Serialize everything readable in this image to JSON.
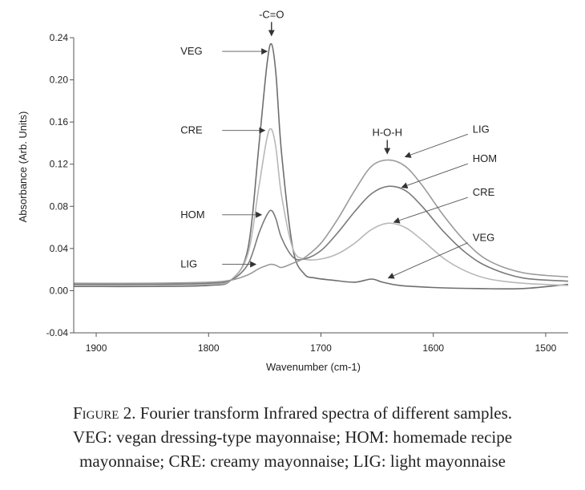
{
  "chart_data": {
    "type": "line",
    "xlabel": "Wavenumber (cm-1)",
    "ylabel": "Absorbance (Arb. Units)",
    "xlim": [
      1920,
      1480
    ],
    "ylim": [
      -0.04,
      0.24
    ],
    "x_ticks": [
      {
        "value": 1900,
        "label": "1900"
      },
      {
        "value": 1800,
        "label": "1800"
      },
      {
        "value": 1700,
        "label": "1700"
      },
      {
        "value": 1600,
        "label": "1600"
      },
      {
        "value": 1500,
        "label": "1500"
      }
    ],
    "y_ticks": [
      {
        "value": 0.24,
        "label": "0.24"
      },
      {
        "value": 0.2,
        "label": "0.20"
      },
      {
        "value": 0.16,
        "label": "0.16"
      },
      {
        "value": 0.12,
        "label": "0.12"
      },
      {
        "value": 0.08,
        "label": "0.08"
      },
      {
        "value": 0.04,
        "label": "0.04"
      },
      {
        "value": 0.0,
        "label": "0.00"
      },
      {
        "value": -0.04,
        "label": "-0.04"
      }
    ],
    "series": [
      {
        "name": "VEG",
        "color": "#6e6e6e",
        "x": [
          1920,
          1850,
          1800,
          1780,
          1765,
          1755,
          1748,
          1744,
          1740,
          1735,
          1725,
          1715,
          1705,
          1690,
          1670,
          1655,
          1645,
          1630,
          1600,
          1560,
          1520,
          1480
        ],
        "y": [
          0.004,
          0.004,
          0.005,
          0.01,
          0.04,
          0.14,
          0.215,
          0.234,
          0.205,
          0.13,
          0.04,
          0.016,
          0.012,
          0.01,
          0.008,
          0.011,
          0.008,
          0.005,
          0.003,
          0.002,
          0.002,
          0.006
        ]
      },
      {
        "name": "CRE",
        "color": "#b8b8b8",
        "x": [
          1920,
          1850,
          1800,
          1780,
          1765,
          1755,
          1748,
          1744,
          1740,
          1735,
          1725,
          1715,
          1700,
          1685,
          1670,
          1655,
          1640,
          1625,
          1610,
          1590,
          1570,
          1550,
          1520,
          1480
        ],
        "y": [
          0.005,
          0.005,
          0.006,
          0.01,
          0.035,
          0.1,
          0.145,
          0.153,
          0.135,
          0.09,
          0.04,
          0.03,
          0.03,
          0.035,
          0.045,
          0.058,
          0.064,
          0.06,
          0.048,
          0.03,
          0.018,
          0.011,
          0.007,
          0.005
        ]
      },
      {
        "name": "HOM",
        "color": "#7a7a7a",
        "x": [
          1920,
          1850,
          1800,
          1780,
          1765,
          1755,
          1748,
          1744,
          1740,
          1735,
          1725,
          1715,
          1700,
          1685,
          1670,
          1655,
          1640,
          1625,
          1610,
          1590,
          1570,
          1550,
          1520,
          1480
        ],
        "y": [
          0.006,
          0.006,
          0.007,
          0.01,
          0.025,
          0.055,
          0.072,
          0.076,
          0.068,
          0.05,
          0.032,
          0.03,
          0.038,
          0.055,
          0.075,
          0.092,
          0.099,
          0.095,
          0.08,
          0.055,
          0.035,
          0.022,
          0.012,
          0.009
        ]
      },
      {
        "name": "LIG",
        "color": "#9a9a9a",
        "x": [
          1920,
          1850,
          1800,
          1780,
          1765,
          1755,
          1748,
          1744,
          1740,
          1735,
          1725,
          1715,
          1700,
          1685,
          1670,
          1655,
          1640,
          1625,
          1610,
          1590,
          1570,
          1550,
          1520,
          1480
        ],
        "y": [
          0.007,
          0.007,
          0.008,
          0.01,
          0.015,
          0.021,
          0.024,
          0.025,
          0.024,
          0.022,
          0.026,
          0.031,
          0.045,
          0.068,
          0.095,
          0.118,
          0.124,
          0.118,
          0.1,
          0.07,
          0.045,
          0.028,
          0.017,
          0.013
        ]
      }
    ],
    "annotations": [
      {
        "text": "-C=O",
        "x": 1744,
        "y": 0.242,
        "kind": "peak"
      },
      {
        "text": "H-O-H",
        "x": 1641,
        "y": 0.13,
        "kind": "peak"
      },
      {
        "text": "VEG",
        "side": "left",
        "lx": 1825,
        "ly": 0.227,
        "tx": 1748,
        "ty": 0.227
      },
      {
        "text": "CRE",
        "side": "left",
        "lx": 1825,
        "ly": 0.152,
        "tx": 1750,
        "ty": 0.152
      },
      {
        "text": "HOM",
        "side": "left",
        "lx": 1825,
        "ly": 0.072,
        "tx": 1753,
        "ty": 0.072
      },
      {
        "text": "LIG",
        "side": "left",
        "lx": 1825,
        "ly": 0.025,
        "tx": 1758,
        "ty": 0.025
      },
      {
        "text": "LIG",
        "side": "right",
        "lx": 1565,
        "ly": 0.153,
        "tx": 1625,
        "ty": 0.127
      },
      {
        "text": "HOM",
        "side": "right",
        "lx": 1565,
        "ly": 0.125,
        "tx": 1628,
        "ty": 0.098
      },
      {
        "text": "CRE",
        "side": "right",
        "lx": 1565,
        "ly": 0.093,
        "tx": 1635,
        "ty": 0.065
      },
      {
        "text": "VEG",
        "side": "right",
        "lx": 1565,
        "ly": 0.05,
        "tx": 1640,
        "ty": 0.012
      }
    ]
  },
  "caption": {
    "figure_word": "Figure",
    "rest_line1": " 2. Fourier transform Infrared spectra of different samples.",
    "line2": "VEG: vegan dressing-type mayonnaise; HOM: homemade recipe",
    "line3": "mayonnaise; CRE: creamy mayonnaise; LIG: light mayonnaise"
  }
}
